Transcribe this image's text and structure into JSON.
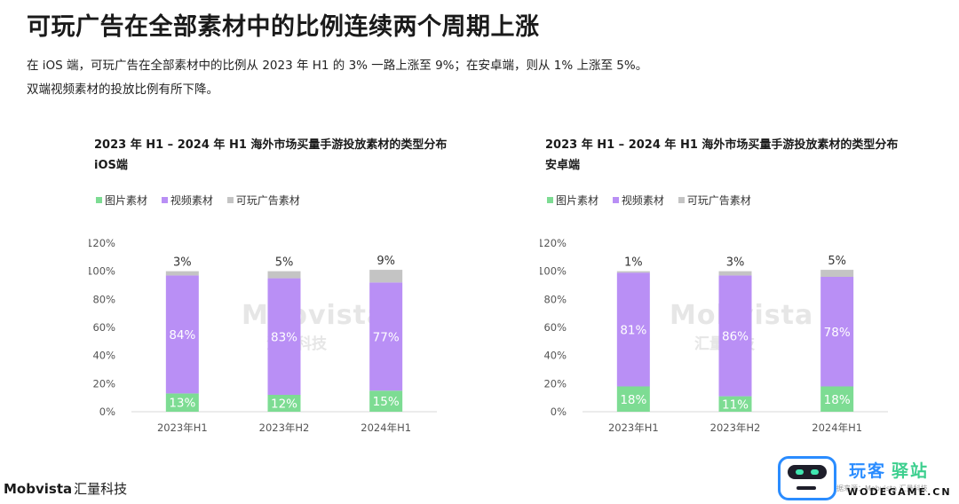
{
  "page": {
    "title": "可玩广告在全部素材中的比例连续两个周期上涨",
    "desc_line1": "在 iOS 端，可玩广告在全部素材中的比例从 2023 年 H1 的 3% 一路上涨至 9%；在安卓端，则从 1% 上涨至 5%。",
    "desc_line2": "双端视频素材的投放比例有所下降。"
  },
  "colors": {
    "image": "#7ddc93",
    "video": "#b98ff5",
    "playable": "#c4c4c4",
    "axis_text": "#555555",
    "bar_label_inside": "#ffffff",
    "bar_label_top": "#333333"
  },
  "watermark": {
    "brand": "Mobvista",
    "cn": "汇量科技"
  },
  "footer": {
    "logo_text": "Mobvista",
    "logo_cn": "汇量科技",
    "source_note": "数据来源：Mobvista 汇量科技"
  },
  "badge": {
    "name_part1": "玩客",
    "name_part2": "驿站",
    "domain": "WODEGAME.CN"
  },
  "chart_data": [
    {
      "type": "bar",
      "stacked": true,
      "title_line1": "2023 年 H1 – 2024 年 H1 海外市场买量手游投放素材的类型分布",
      "title_line2": "iOS端",
      "legend": [
        "图片素材",
        "视频素材",
        "可玩广告素材"
      ],
      "legend_position": "top-left",
      "categories": [
        "2023年H1",
        "2023年H2",
        "2024年H1"
      ],
      "y_ticks": [
        "0%",
        "20%",
        "40%",
        "60%",
        "80%",
        "100%",
        "120%"
      ],
      "ylim": [
        0,
        120
      ],
      "series": [
        {
          "name": "图片素材",
          "values": [
            13,
            12,
            15
          ],
          "labels": [
            "13%",
            "12%",
            "15%"
          ]
        },
        {
          "name": "视频素材",
          "values": [
            84,
            83,
            77
          ],
          "labels": [
            "84%",
            "83%",
            "77%"
          ]
        },
        {
          "name": "可玩广告素材",
          "values": [
            3,
            5,
            9
          ],
          "labels": [
            "3%",
            "5%",
            "9%"
          ]
        }
      ]
    },
    {
      "type": "bar",
      "stacked": true,
      "title_line1": "2023 年 H1 – 2024 年 H1 海外市场买量手游投放素材的类型分布",
      "title_line2": "安卓端",
      "legend": [
        "图片素材",
        "视频素材",
        "可玩广告素材"
      ],
      "legend_position": "top-left",
      "categories": [
        "2023年H1",
        "2023年H2",
        "2024年H1"
      ],
      "y_ticks": [
        "0%",
        "20%",
        "40%",
        "60%",
        "80%",
        "100%",
        "120%"
      ],
      "ylim": [
        0,
        120
      ],
      "series": [
        {
          "name": "图片素材",
          "values": [
            18,
            11,
            18
          ],
          "labels": [
            "18%",
            "11%",
            "18%"
          ]
        },
        {
          "name": "视频素材",
          "values": [
            81,
            86,
            78
          ],
          "labels": [
            "81%",
            "86%",
            "78%"
          ]
        },
        {
          "name": "可玩广告素材",
          "values": [
            1,
            3,
            5
          ],
          "labels": [
            "1%",
            "3%",
            "5%"
          ]
        }
      ]
    }
  ]
}
